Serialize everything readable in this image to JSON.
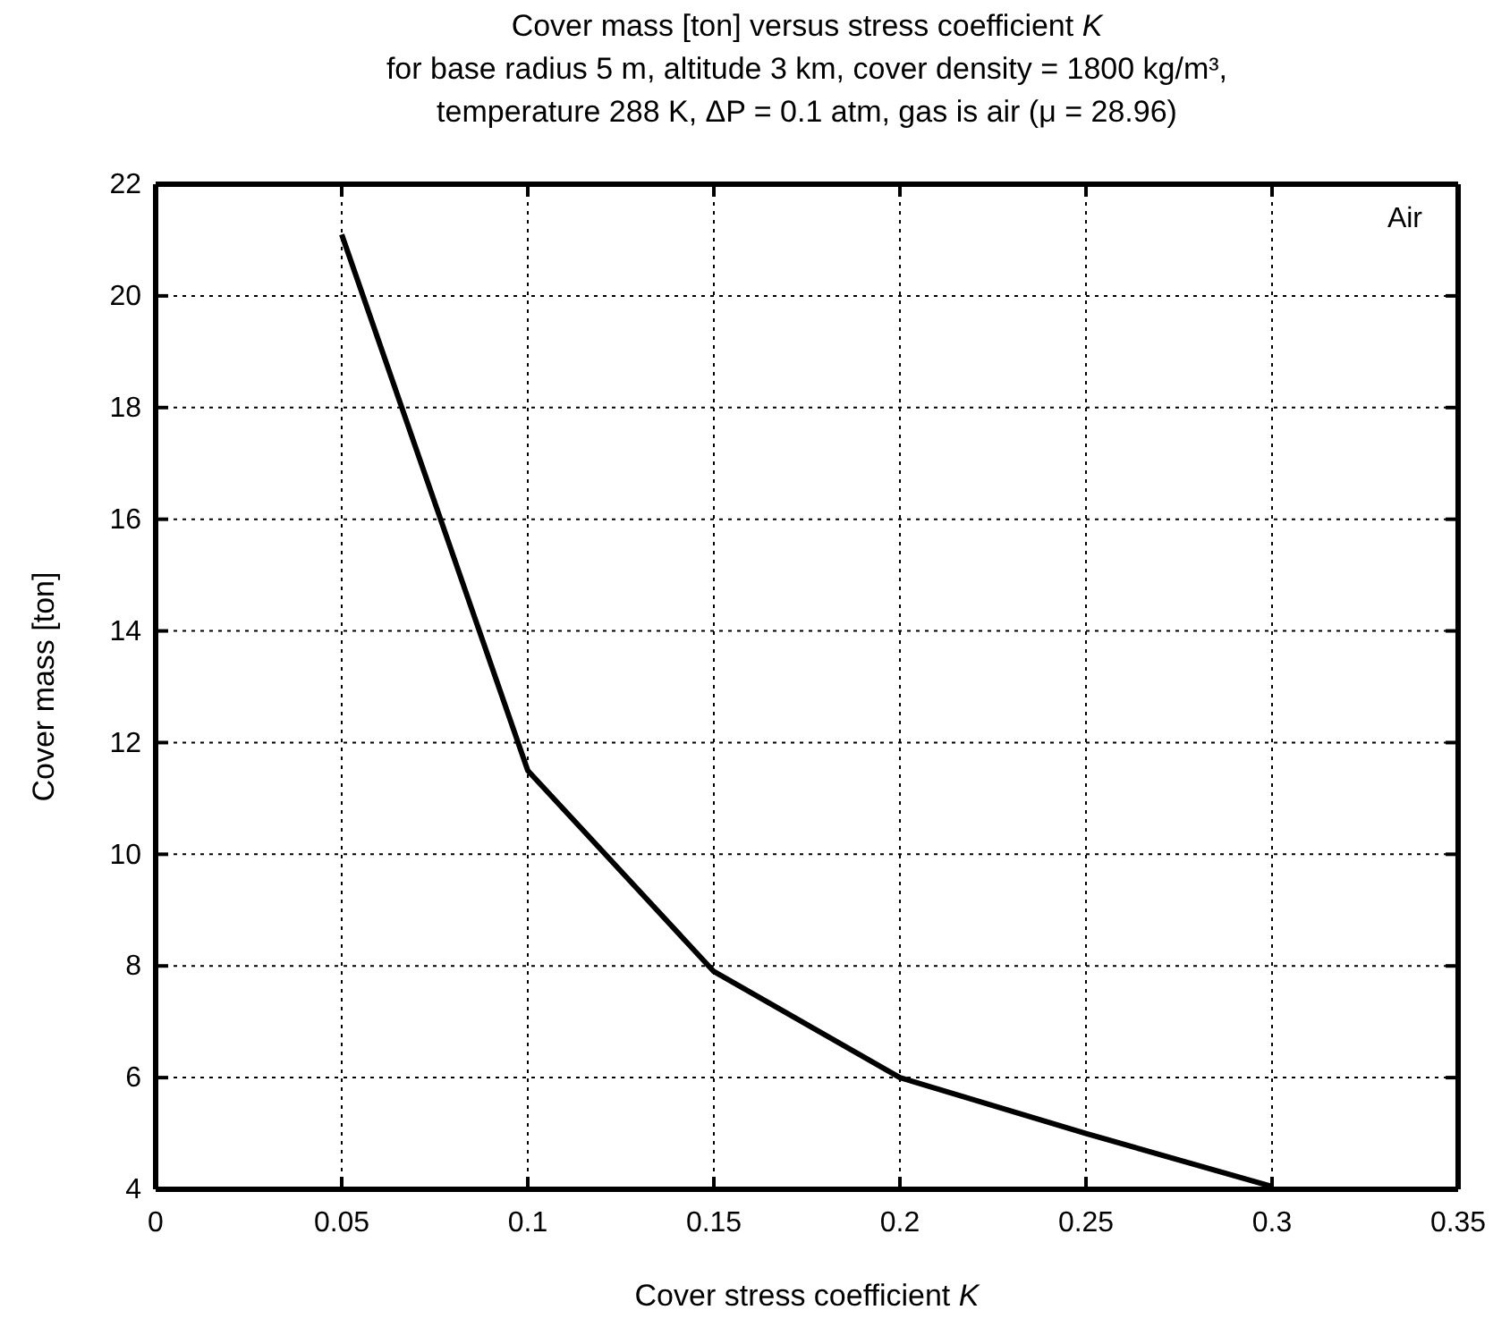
{
  "chart_data": {
    "type": "line",
    "title": "Cover mass [ton] versus stress coefficient K",
    "subtitle": "for base radius 5 m, altitude 3 km, cover density = 1800 kg/m³,\ntemperature 288 K, ΔP = 0.1 atm, gas is air (μ = 28.96)",
    "xlabel": "Cover stress coefficient K",
    "ylabel": "Cover mass [ton]",
    "annotations": [
      "Air"
    ],
    "x": [
      0.05,
      0.1,
      0.15,
      0.2,
      0.25,
      0.3
    ],
    "series": [
      {
        "color": "#000000",
        "values": [
          21.1,
          11.5,
          7.9,
          6.0,
          5.0,
          4.05
        ]
      }
    ],
    "xlim": [
      0,
      0.35
    ],
    "xticks": [
      0,
      0.05,
      0.1,
      0.15,
      0.2,
      0.25,
      0.3,
      0.35
    ],
    "ylim": [
      4,
      22
    ],
    "yticks": [
      4,
      6,
      8,
      10,
      12,
      14,
      16,
      18,
      20,
      22
    ],
    "grid": true,
    "line_style": "solid",
    "marker": "none"
  }
}
